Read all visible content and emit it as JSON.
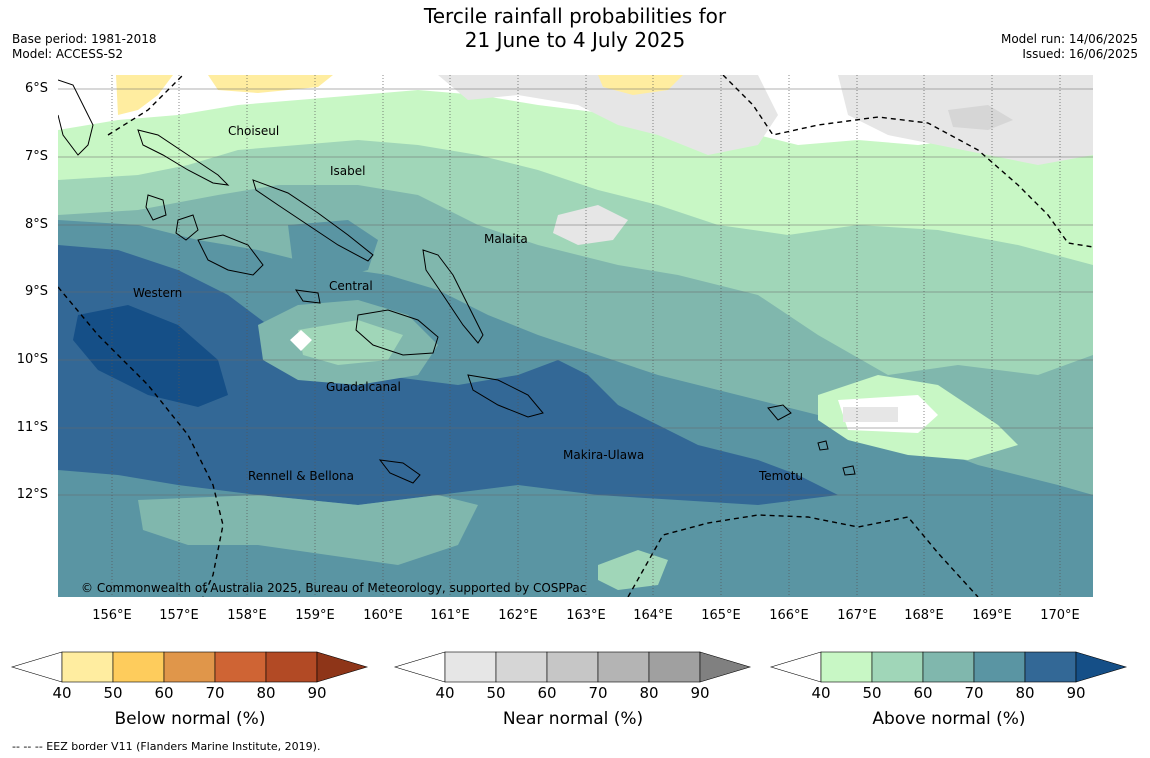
{
  "header": {
    "title_line1": "Tercile rainfall probabilities for",
    "title_line2": "21 June to 4 July 2025",
    "base_period": "Base period: 1981-2018",
    "model": "Model: ACCESS-S2",
    "model_run": "Model run: 14/06/2025",
    "issued": "Issued: 16/06/2025"
  },
  "map": {
    "lat_labels": [
      "6°S",
      "7°S",
      "8°S",
      "9°S",
      "10°S",
      "11°S",
      "12°S"
    ],
    "lon_labels": [
      "156°E",
      "157°E",
      "158°E",
      "159°E",
      "160°E",
      "161°E",
      "162°E",
      "163°E",
      "164°E",
      "165°E",
      "166°E",
      "167°E",
      "168°E",
      "169°E",
      "170°E"
    ],
    "province_labels": {
      "choiseul": "Choiseul",
      "isabel": "Isabel",
      "malaita": "Malaita",
      "central": "Central",
      "western": "Western",
      "guadalcanal": "Guadalcanal",
      "makira": "Makira-Ulawa",
      "rennell": "Rennell & Bellona",
      "temotu": "Temotu"
    },
    "copyright": "© Commonwealth of Australia 2025, Bureau of Meteorology, supported by COSPPac"
  },
  "colorbars": {
    "ticks": [
      "40",
      "50",
      "60",
      "70",
      "80",
      "90"
    ],
    "below": {
      "title": "Below normal (%)",
      "colors": [
        "#ffffff",
        "#ffeda0",
        "#fecc5c",
        "#e0964a",
        "#cf6434",
        "#b24a25",
        "#8e3518"
      ]
    },
    "near": {
      "title": "Near normal (%)",
      "colors": [
        "#ffffff",
        "#e6e6e6",
        "#d6d6d6",
        "#c6c6c6",
        "#b4b4b4",
        "#a0a0a0",
        "#808080"
      ]
    },
    "above": {
      "title": "Above normal (%)",
      "colors": [
        "#ffffff",
        "#c8f7c5",
        "#a0d6b8",
        "#80b7ad",
        "#5a95a3",
        "#336896",
        "#154f87"
      ]
    }
  },
  "footer": "--  --  -- EEZ border V11 (Flanders Marine Institute, 2019)."
}
